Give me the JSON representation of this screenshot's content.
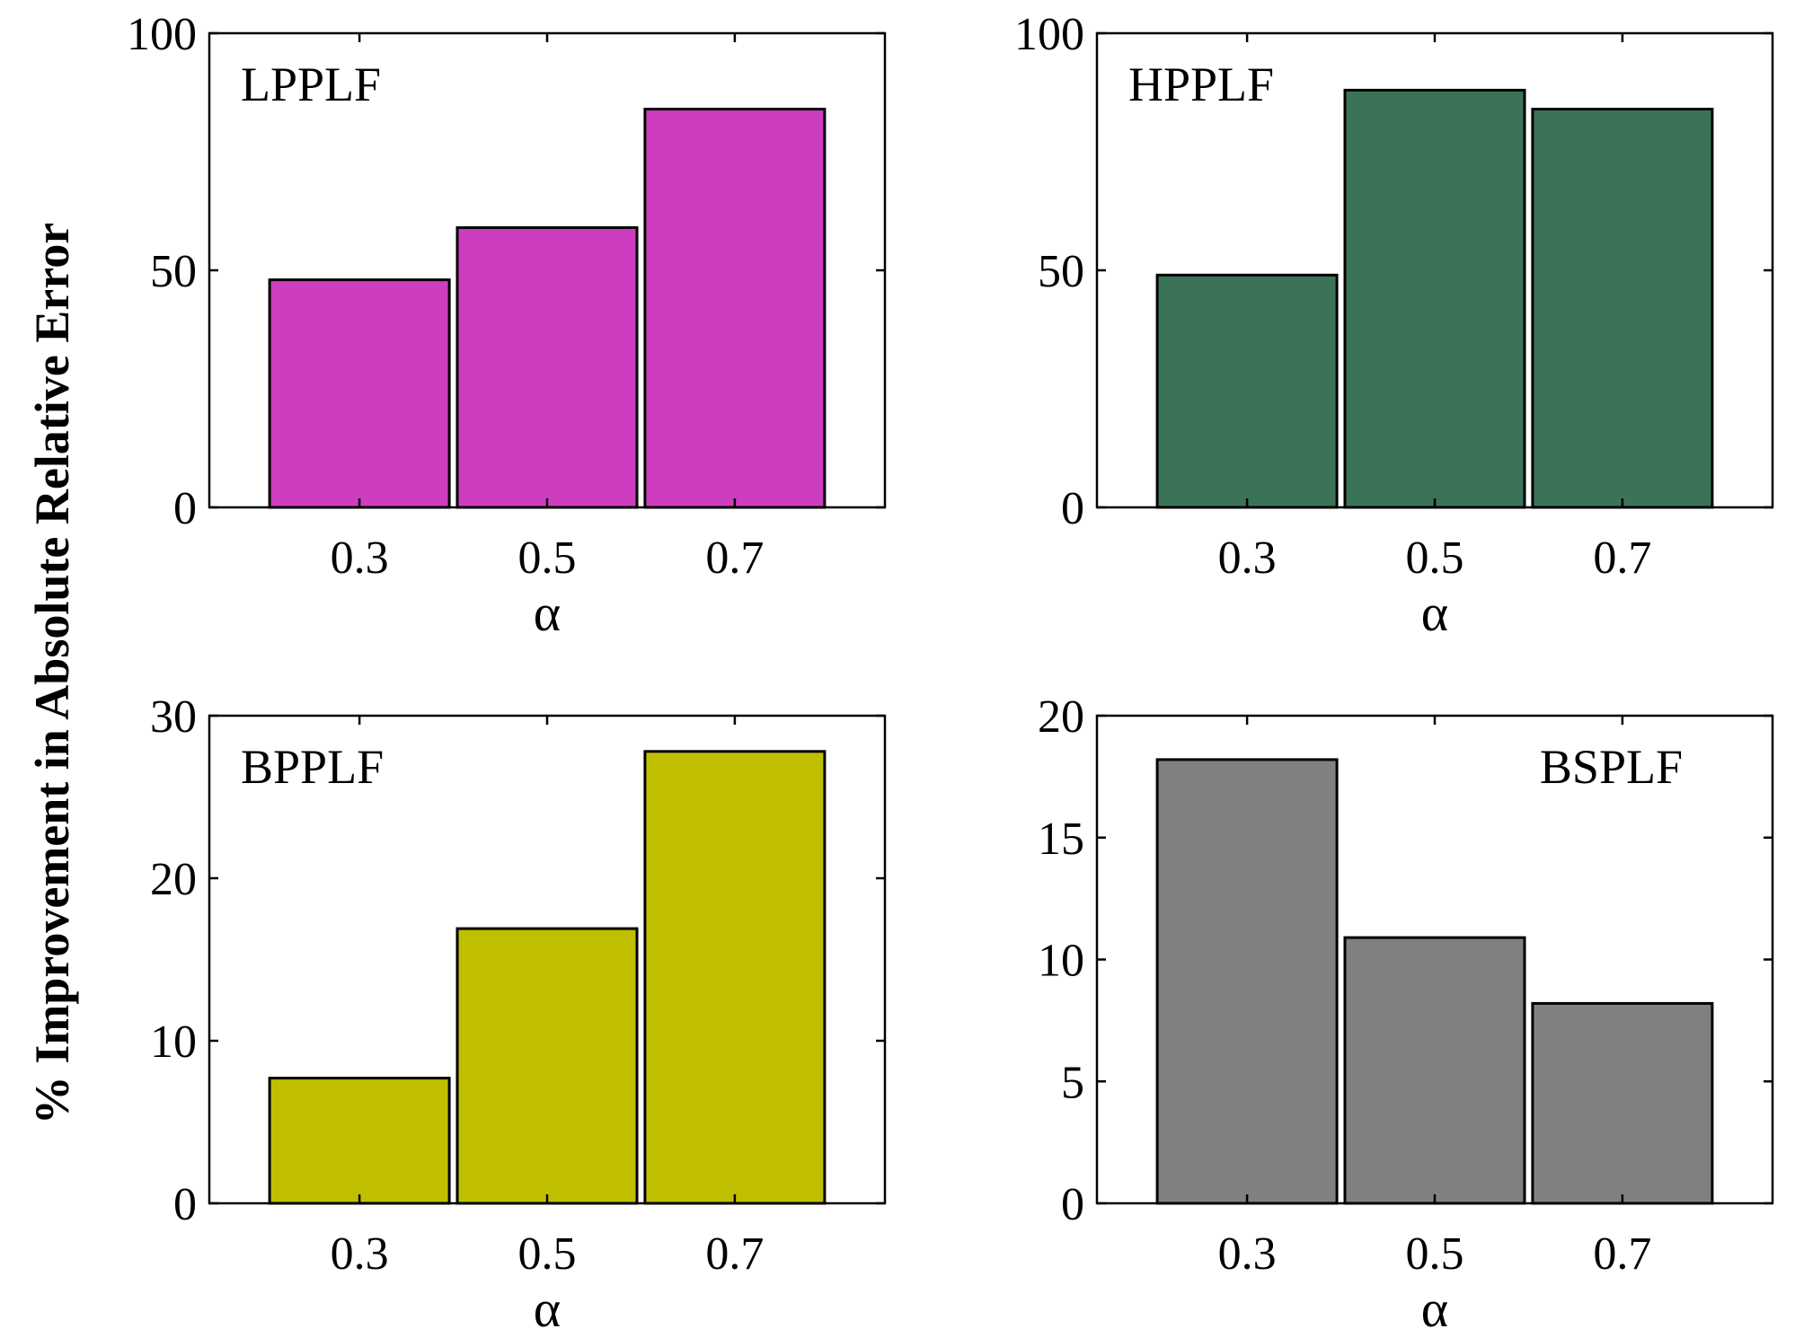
{
  "figure": {
    "ylabel": "% Improvement in Absolute Relative Error"
  },
  "chart_data": [
    {
      "type": "bar",
      "label": "LPPLF",
      "label_position": "top-left",
      "categories": [
        "0.3",
        "0.5",
        "0.7"
      ],
      "values": [
        48,
        59,
        84
      ],
      "xlabel": "α",
      "ylim": [
        0,
        100
      ],
      "yticks": [
        0,
        50,
        100
      ],
      "color": "#CC3DBF"
    },
    {
      "type": "bar",
      "label": "HPPLF",
      "label_position": "top-left",
      "categories": [
        "0.3",
        "0.5",
        "0.7"
      ],
      "values": [
        49,
        88,
        84
      ],
      "xlabel": "α",
      "ylim": [
        0,
        100
      ],
      "yticks": [
        0,
        50,
        100
      ],
      "color": "#3B7358"
    },
    {
      "type": "bar",
      "label": "BPPLF",
      "label_position": "top-left",
      "categories": [
        "0.3",
        "0.5",
        "0.7"
      ],
      "values": [
        7.7,
        16.9,
        27.8
      ],
      "xlabel": "α",
      "ylim": [
        0,
        30
      ],
      "yticks": [
        0,
        10,
        20,
        30
      ],
      "color": "#BFBF00"
    },
    {
      "type": "bar",
      "label": "BSPLF",
      "label_position": "top-right",
      "categories": [
        "0.3",
        "0.5",
        "0.7"
      ],
      "values": [
        18.2,
        10.9,
        8.2
      ],
      "xlabel": "α",
      "ylim": [
        0,
        20
      ],
      "yticks": [
        0,
        5,
        10,
        15,
        20
      ],
      "color": "#808080"
    }
  ]
}
